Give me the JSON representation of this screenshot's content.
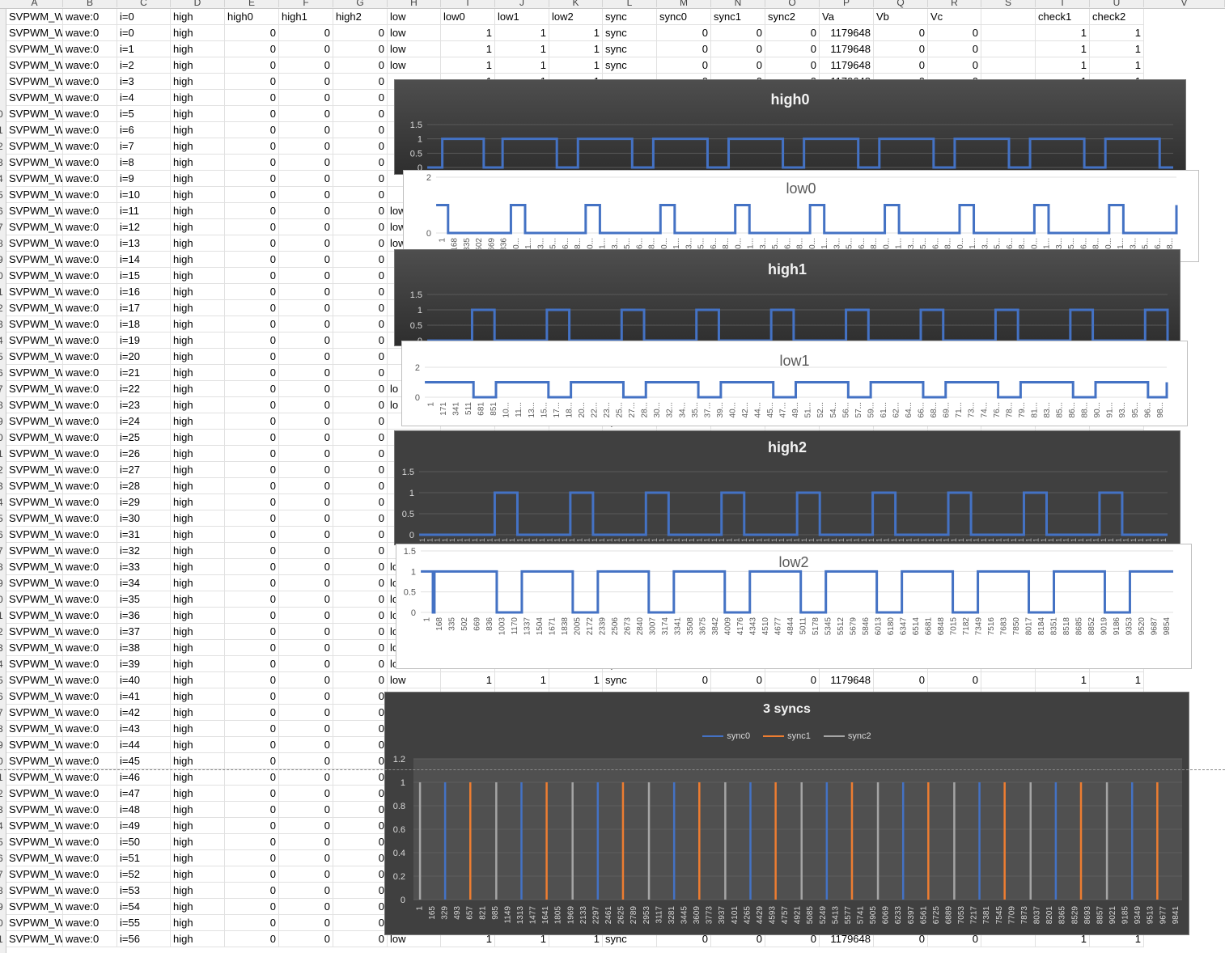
{
  "sheet": {
    "column_letters": [
      "A",
      "B",
      "C",
      "D",
      "E",
      "F",
      "G",
      "H",
      "I",
      "J",
      "K",
      "L",
      "M",
      "N",
      "O",
      "P",
      "Q",
      "R",
      "S",
      "T",
      "U",
      "V"
    ],
    "header_row": [
      "SVPWM_W",
      "wave:0",
      "i=0",
      "high",
      "high0",
      "high1",
      "high2",
      "low",
      "low0",
      "low1",
      "low2",
      "sync",
      "sync0",
      "sync1",
      "sync2",
      "Va",
      "Vb",
      "Vc",
      "",
      "check1",
      "check2"
    ],
    "row_numbers": [
      "",
      "",
      "",
      "",
      "",
      "",
      "",
      "0",
      "1",
      "2",
      "3",
      "4",
      "5",
      "6",
      "7",
      "8",
      "9",
      "0",
      "1",
      "2",
      "3",
      "4",
      "5",
      "6",
      "7",
      "8",
      "9",
      "0",
      "1",
      "2",
      "3",
      "4",
      "5",
      "6",
      "7",
      "8",
      "9",
      "0",
      "1",
      "2",
      "3",
      "4",
      "5",
      "6",
      "7",
      "8",
      "9",
      "0",
      "1",
      "2",
      "3",
      "4",
      "5",
      "6",
      "7",
      "8",
      "9",
      "0",
      "1"
    ],
    "row_template": {
      "a": "SVPWM_W",
      "b": "wave:0",
      "d": "high",
      "e": "0",
      "f": "0",
      "g": "0",
      "h": "low",
      "i": "1",
      "j": "1",
      "k": "1",
      "l": "sync",
      "m": "0",
      "n": "0",
      "o": "0",
      "p": "1179648",
      "q": "0",
      "r": "0",
      "t": "1",
      "u": "1"
    },
    "row_count": 58,
    "visible_low_rows": {
      "1": "low",
      "2": "low",
      "3": "low",
      "12": "low",
      "13": "low",
      "14": "low",
      "23": "lo",
      "24": "lo",
      "34": "lo",
      "35": "lo",
      "36": "lo",
      "37": "lo",
      "38": "lo",
      "39": "lo",
      "40": "lo",
      "41": "low",
      "57": "low"
    },
    "full_rows": [
      0,
      1,
      2,
      40,
      56
    ],
    "page_break_after_row": 45
  },
  "charts": {
    "high0": {
      "title": "high0",
      "type": "line",
      "color": "#4472c4",
      "y_ticks": [
        "1.5",
        "1",
        "0.5",
        "0"
      ],
      "ylim": [
        0,
        1.5
      ]
    },
    "low0": {
      "title": "low0",
      "type": "line",
      "color": "#4472c4",
      "y_ticks": [
        "2",
        "0"
      ],
      "ylim": [
        0,
        2
      ],
      "x_ticks": [
        "1",
        "168",
        "335",
        "502",
        "669",
        "836",
        "10...",
        "11...",
        "13...",
        "15...",
        "16...",
        "18...",
        "20...",
        "21...",
        "23...",
        "25...",
        "26...",
        "28...",
        "30...",
        "31...",
        "33...",
        "35...",
        "36...",
        "38...",
        "40...",
        "41...",
        "43...",
        "45...",
        "46...",
        "48...",
        "50...",
        "51...",
        "53...",
        "55...",
        "56...",
        "58...",
        "60...",
        "61...",
        "63...",
        "65...",
        "66...",
        "68...",
        "70...",
        "71...",
        "73...",
        "75...",
        "76...",
        "78...",
        "80...",
        "81...",
        "83...",
        "85...",
        "86...",
        "88...",
        "90...",
        "91...",
        "93...",
        "95...",
        "96...",
        "98..."
      ]
    },
    "high1": {
      "title": "high1",
      "type": "line",
      "color": "#4472c4",
      "y_ticks": [
        "1.5",
        "1",
        "0.5",
        "0"
      ],
      "ylim": [
        0,
        1.5
      ]
    },
    "low1": {
      "title": "low1",
      "type": "line",
      "color": "#4472c4",
      "y_ticks": [
        "2",
        "0"
      ],
      "ylim": [
        0,
        2
      ],
      "x_ticks": [
        "1",
        "171",
        "341",
        "511",
        "681",
        "851",
        "10...",
        "11...",
        "13...",
        "15...",
        "17...",
        "18...",
        "20...",
        "22...",
        "23...",
        "25...",
        "27...",
        "28...",
        "30...",
        "32...",
        "34...",
        "35...",
        "37...",
        "39...",
        "40...",
        "42...",
        "44...",
        "45...",
        "47...",
        "49...",
        "51...",
        "52...",
        "54...",
        "56...",
        "57...",
        "59...",
        "61...",
        "62...",
        "64...",
        "66...",
        "68...",
        "69...",
        "71...",
        "73...",
        "74...",
        "76...",
        "78...",
        "79...",
        "81...",
        "83...",
        "85...",
        "86...",
        "88...",
        "90...",
        "91...",
        "93...",
        "95...",
        "96...",
        "98..."
      ]
    },
    "high2": {
      "title": "high2",
      "type": "line",
      "color": "#4472c4",
      "y_ticks": [
        "1.5",
        "1",
        "0.5",
        "0"
      ],
      "ylim": [
        0,
        1.5
      ]
    },
    "low2": {
      "title": "low2",
      "type": "line",
      "color": "#4472c4",
      "y_ticks": [
        "1.5",
        "1",
        "0.5",
        "0"
      ],
      "ylim": [
        0,
        1.5
      ],
      "x_ticks": [
        "1",
        "168",
        "335",
        "502",
        "669",
        "836",
        "1003",
        "1170",
        "1337",
        "1504",
        "1671",
        "1838",
        "2005",
        "2172",
        "2339",
        "2506",
        "2673",
        "2840",
        "3007",
        "3174",
        "3341",
        "3508",
        "3675",
        "3842",
        "4009",
        "4176",
        "4343",
        "4510",
        "4677",
        "4844",
        "5011",
        "5178",
        "5345",
        "5512",
        "5679",
        "5846",
        "6013",
        "6180",
        "6347",
        "6514",
        "6681",
        "6848",
        "7015",
        "7182",
        "7349",
        "7516",
        "7683",
        "7850",
        "8017",
        "8184",
        "8351",
        "8518",
        "8685",
        "8852",
        "9019",
        "9186",
        "9353",
        "9520",
        "9687",
        "9854"
      ]
    },
    "syncs": {
      "title": "3 syncs",
      "type": "line",
      "legend": [
        {
          "name": "sync0",
          "color": "#4472c4"
        },
        {
          "name": "sync1",
          "color": "#ed7d31"
        },
        {
          "name": "sync2",
          "color": "#a5a5a5"
        }
      ],
      "y_ticks": [
        "1.2",
        "1",
        "0.8",
        "0.6",
        "0.4",
        "0.2",
        "0"
      ],
      "ylim": [
        0,
        1.2
      ],
      "x_ticks": [
        "1",
        "165",
        "329",
        "493",
        "657",
        "821",
        "985",
        "1149",
        "1313",
        "1477",
        "1641",
        "1805",
        "1969",
        "2133",
        "2297",
        "2461",
        "2625",
        "2789",
        "2953",
        "3117",
        "3281",
        "3445",
        "3609",
        "3773",
        "3937",
        "4101",
        "4265",
        "4429",
        "4593",
        "4757",
        "4921",
        "5085",
        "5249",
        "5413",
        "5577",
        "5741",
        "5905",
        "6069",
        "6233",
        "6397",
        "6561",
        "6725",
        "6889",
        "7053",
        "7217",
        "7381",
        "7545",
        "7709",
        "7873",
        "8037",
        "8201",
        "8365",
        "8529",
        "8693",
        "8857",
        "9021",
        "9185",
        "9349",
        "9513",
        "9677",
        "9841"
      ]
    }
  },
  "chart_data": [
    {
      "type": "line",
      "title": "high0",
      "series": [
        {
          "name": "high0",
          "x": [
            1,
            200,
            600,
            750,
            1000,
            1600,
            1720,
            2000,
            2600,
            2720,
            3000,
            3600,
            3720,
            4000,
            4600,
            4720,
            5000,
            5600,
            5720,
            6000,
            6600,
            6720,
            7000,
            7600,
            7720,
            8000,
            8600,
            8720,
            9000,
            9600,
            9720,
            9900
          ],
          "values": [
            0,
            1,
            1,
            0,
            1,
            1,
            0,
            1,
            1,
            0,
            1,
            1,
            0,
            1,
            1,
            0,
            1,
            1,
            0,
            1,
            1,
            0,
            1,
            1,
            0,
            1,
            1,
            0,
            1,
            1,
            0,
            0
          ]
        }
      ],
      "ylim": [
        0,
        1.5
      ]
    },
    {
      "type": "line",
      "title": "low0",
      "series": [
        {
          "name": "low0",
          "x": [
            1,
            160,
            1000,
            1190,
            2000,
            2190,
            3000,
            3190,
            4000,
            4190,
            5000,
            5190,
            6000,
            6190,
            7000,
            7190,
            8000,
            8190,
            9000,
            9190,
            9900
          ],
          "values": [
            1,
            0,
            1,
            0,
            1,
            0,
            1,
            0,
            1,
            0,
            1,
            0,
            1,
            0,
            1,
            0,
            1,
            0,
            1,
            0,
            1
          ]
        }
      ],
      "ylim": [
        0,
        2
      ]
    },
    {
      "type": "line",
      "title": "high1",
      "series": [
        {
          "name": "high1",
          "x": [
            1,
            600,
            900,
            1600,
            1900,
            2600,
            2900,
            3600,
            3900,
            4600,
            4900,
            5600,
            5900,
            6600,
            6900,
            7600,
            7900,
            8600,
            8900,
            9600,
            9900
          ],
          "values": [
            0,
            1,
            0,
            1,
            0,
            1,
            0,
            1,
            0,
            1,
            0,
            1,
            0,
            1,
            0,
            1,
            0,
            1,
            0,
            1,
            0
          ]
        }
      ],
      "ylim": [
        0,
        1.5
      ]
    },
    {
      "type": "line",
      "title": "low1",
      "series": [
        {
          "name": "low1",
          "x": [
            1,
            650,
            950,
            1650,
            1950,
            2650,
            2950,
            3650,
            3950,
            4650,
            4950,
            5650,
            5950,
            6650,
            6950,
            7650,
            7950,
            8650,
            8950,
            9650,
            9900
          ],
          "values": [
            1,
            0,
            1,
            0,
            1,
            0,
            1,
            0,
            1,
            0,
            1,
            0,
            1,
            0,
            1,
            0,
            1,
            0,
            1,
            0,
            1
          ]
        }
      ],
      "ylim": [
        0,
        2
      ]
    },
    {
      "type": "line",
      "title": "high2",
      "series": [
        {
          "name": "high2",
          "x": [
            1,
            1000,
            1300,
            2000,
            2300,
            3000,
            3300,
            4000,
            4300,
            5000,
            5300,
            6000,
            6300,
            7000,
            7300,
            8000,
            8300,
            9000,
            9300,
            9900
          ],
          "values": [
            0,
            1,
            0,
            1,
            0,
            1,
            0,
            1,
            0,
            1,
            0,
            1,
            0,
            1,
            0,
            1,
            0,
            1,
            0,
            0
          ]
        }
      ],
      "ylim": [
        0,
        1.5
      ]
    },
    {
      "type": "line",
      "title": "low2",
      "series": [
        {
          "name": "low2",
          "x": [
            1,
            160,
            180,
            1000,
            1330,
            2000,
            2330,
            3000,
            3330,
            4000,
            4330,
            5000,
            5330,
            6000,
            6330,
            7000,
            7330,
            8000,
            8330,
            9000,
            9330,
            9900
          ],
          "values": [
            1,
            0,
            1,
            0,
            1,
            0,
            1,
            0,
            1,
            0,
            1,
            0,
            1,
            0,
            1,
            0,
            1,
            0,
            1,
            0,
            1,
            1
          ]
        }
      ],
      "ylim": [
        0,
        1.5
      ]
    },
    {
      "type": "line",
      "title": "3 syncs",
      "ylim": [
        0,
        1.2
      ],
      "series": [
        {
          "name": "sync0",
          "spikes": [
            330,
            1330,
            2330,
            3330,
            4330,
            5330,
            6330,
            7330,
            8330,
            9330
          ],
          "value": 1
        },
        {
          "name": "sync1",
          "spikes": [
            660,
            1660,
            2660,
            3660,
            4660,
            5660,
            6660,
            7660,
            8660,
            9660
          ],
          "value": 1
        },
        {
          "name": "sync2",
          "spikes": [
            1,
            1000,
            2000,
            3000,
            4000,
            5000,
            6000,
            7000,
            8000,
            9000
          ],
          "value": 1
        }
      ]
    }
  ]
}
